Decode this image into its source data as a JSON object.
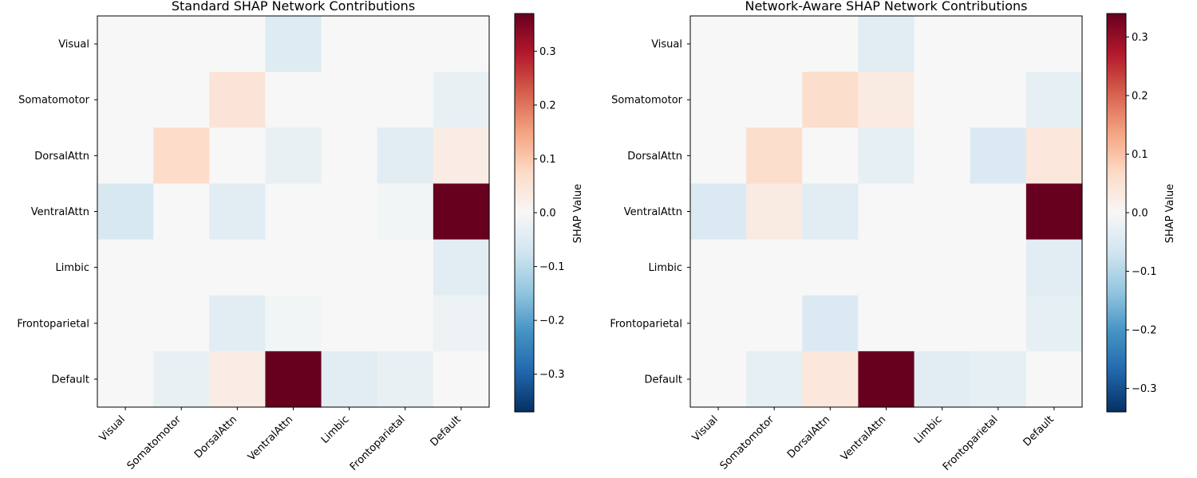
{
  "colors": {
    "colormap": "RdBu_r",
    "neg_end": "#053061",
    "zero": "#f7f7f7",
    "pos_end": "#67001f"
  },
  "chart_data": [
    {
      "type": "heatmap",
      "title": "Standard SHAP Network Contributions",
      "x_categories": [
        "Visual",
        "Somatomotor",
        "DorsalAttn",
        "VentralAttn",
        "Limbic",
        "Frontoparietal",
        "Default"
      ],
      "y_categories": [
        "Visual",
        "Somatomotor",
        "DorsalAttn",
        "VentralAttn",
        "Limbic",
        "Frontoparietal",
        "Default"
      ],
      "values": [
        [
          0,
          0,
          0,
          -0.05,
          0,
          0,
          0
        ],
        [
          0,
          0,
          0.05,
          0,
          0,
          0,
          -0.03
        ],
        [
          0,
          0.07,
          0,
          -0.03,
          0,
          -0.04,
          0.03
        ],
        [
          -0.06,
          0,
          -0.04,
          0,
          0,
          -0.01,
          0.37
        ],
        [
          0,
          0,
          0,
          0,
          0,
          0,
          -0.04
        ],
        [
          0,
          0,
          -0.04,
          -0.01,
          0,
          0,
          -0.02
        ],
        [
          0,
          -0.03,
          0.03,
          0.37,
          -0.04,
          -0.03,
          0
        ]
      ],
      "vmin": -0.37,
      "vmax": 0.37,
      "colorbar_ticks": [
        -0.3,
        -0.2,
        -0.1,
        0.0,
        0.1,
        0.2,
        0.3
      ],
      "colorbar_tick_labels": [
        "−0.3",
        "−0.2",
        "−0.1",
        "0.0",
        "0.1",
        "0.2",
        "0.3"
      ],
      "colorbar_label": "SHAP Value"
    },
    {
      "type": "heatmap",
      "title": "Network-Aware SHAP Network Contributions",
      "x_categories": [
        "Visual",
        "Somatomotor",
        "DorsalAttn",
        "VentralAttn",
        "Limbic",
        "Frontoparietal",
        "Default"
      ],
      "y_categories": [
        "Visual",
        "Somatomotor",
        "DorsalAttn",
        "VentralAttn",
        "Limbic",
        "Frontoparietal",
        "Default"
      ],
      "values": [
        [
          0,
          0,
          0,
          -0.04,
          0,
          0,
          0
        ],
        [
          0,
          0,
          0.06,
          0.03,
          0,
          0,
          -0.03
        ],
        [
          0,
          0.06,
          0,
          -0.03,
          0,
          -0.05,
          0.04
        ],
        [
          -0.05,
          0.03,
          -0.04,
          0,
          0,
          0,
          0.34
        ],
        [
          0,
          0,
          0,
          0,
          0,
          0,
          -0.04
        ],
        [
          0,
          0,
          -0.05,
          0,
          0,
          0,
          -0.03
        ],
        [
          0,
          -0.03,
          0.04,
          0.34,
          -0.04,
          -0.03,
          0
        ]
      ],
      "vmin": -0.34,
      "vmax": 0.34,
      "colorbar_ticks": [
        -0.3,
        -0.2,
        -0.1,
        0.0,
        0.1,
        0.2,
        0.3
      ],
      "colorbar_tick_labels": [
        "−0.3",
        "−0.2",
        "−0.1",
        "0.0",
        "0.1",
        "0.2",
        "0.3"
      ],
      "colorbar_label": "SHAP Value"
    }
  ]
}
